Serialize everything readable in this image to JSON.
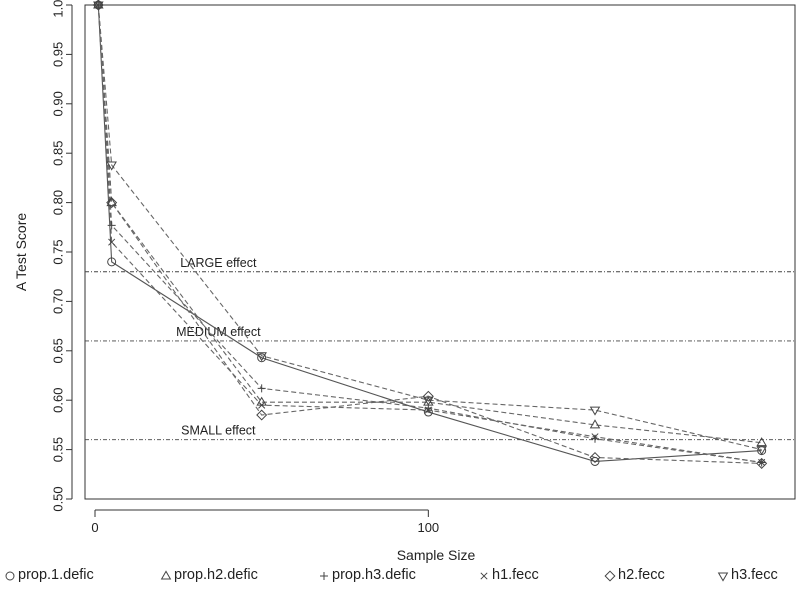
{
  "chart_data": {
    "type": "line",
    "xlabel": "Sample Size",
    "ylabel": "A Test Score",
    "xlim": [
      -3,
      210
    ],
    "ylim": [
      0.5,
      1.0
    ],
    "xticks": [
      {
        "value": 0,
        "label": "0"
      },
      {
        "value": 100,
        "label": "100"
      }
    ],
    "yticks": [
      {
        "value": 0.5,
        "label": "0.50"
      },
      {
        "value": 0.55,
        "label": "0.55"
      },
      {
        "value": 0.6,
        "label": "0.60"
      },
      {
        "value": 0.65,
        "label": "0.65"
      },
      {
        "value": 0.7,
        "label": "0.70"
      },
      {
        "value": 0.75,
        "label": "0.75"
      },
      {
        "value": 0.8,
        "label": "0.80"
      },
      {
        "value": 0.85,
        "label": "0.85"
      },
      {
        "value": 0.9,
        "label": "0.90"
      },
      {
        "value": 0.95,
        "label": "0.95"
      },
      {
        "value": 1.0,
        "label": "1.00"
      }
    ],
    "reference_lines": [
      {
        "value": 0.73,
        "label": "LARGE effect"
      },
      {
        "value": 0.66,
        "label": "MEDIUM effect"
      },
      {
        "value": 0.56,
        "label": "SMALL effect"
      }
    ],
    "x": [
      1,
      5,
      50,
      100,
      150,
      200
    ],
    "series": [
      {
        "name": "prop.1.defic",
        "marker": "circle",
        "line": "solid",
        "values": [
          1.0,
          0.74,
          0.643,
          0.588,
          0.538,
          0.549
        ]
      },
      {
        "name": "prop.h2.defic",
        "marker": "triangle",
        "line": "dashed",
        "values": [
          1.0,
          0.8,
          0.598,
          0.598,
          0.575,
          0.557
        ]
      },
      {
        "name": "prop.h3.defic",
        "marker": "plus",
        "line": "dashed",
        "values": [
          1.0,
          0.777,
          0.612,
          0.592,
          0.561,
          0.537
        ]
      },
      {
        "name": "h1.fecc",
        "marker": "cross",
        "line": "dashed",
        "values": [
          1.0,
          0.76,
          0.595,
          0.59,
          0.563,
          0.537
        ]
      },
      {
        "name": "h2.fecc",
        "marker": "diamond",
        "line": "dashed",
        "values": [
          1.0,
          0.8,
          0.585,
          0.604,
          0.542,
          0.536
        ]
      },
      {
        "name": "h3.fecc",
        "marker": "triangle-down",
        "line": "dashed",
        "values": [
          1.0,
          0.838,
          0.645,
          0.6,
          0.59,
          0.55
        ]
      }
    ],
    "grid": false,
    "legend_position": "bottom"
  }
}
